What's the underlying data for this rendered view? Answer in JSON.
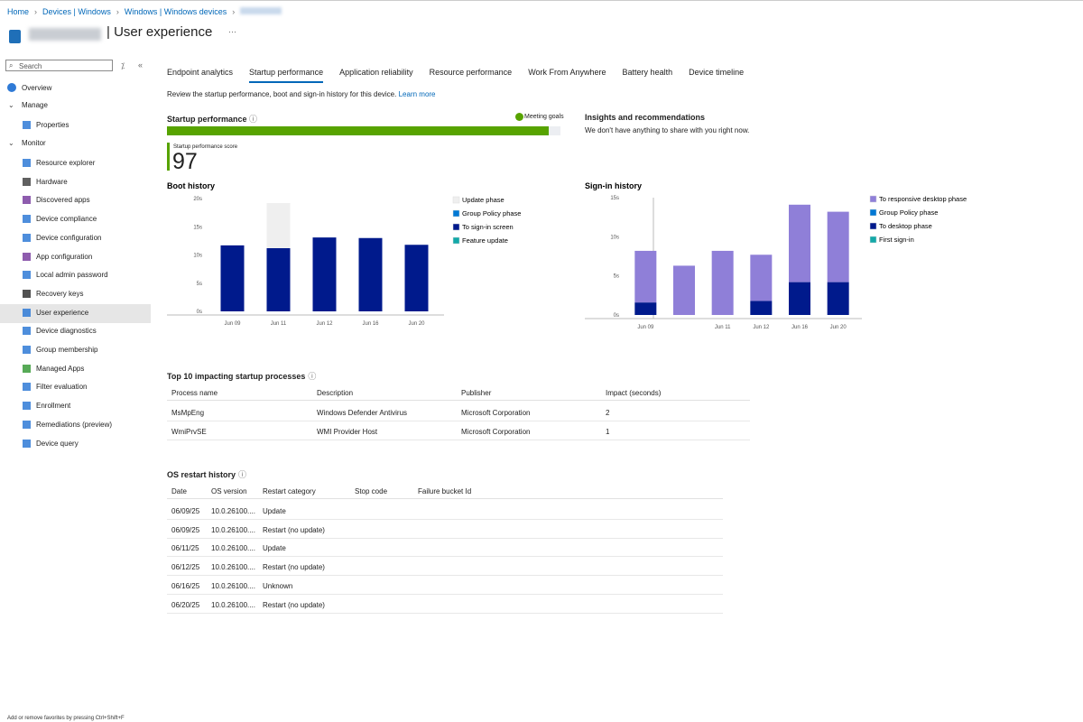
{
  "breadcrumb": [
    "Home",
    "Devices | Windows",
    "Windows | Windows devices"
  ],
  "header": {
    "title": "User experience",
    "more": "···"
  },
  "sidebar": {
    "search": "Search",
    "overview": "Overview",
    "groups": [
      {
        "name": "Manage",
        "items": [
          "Properties"
        ]
      },
      {
        "name": "Monitor",
        "items": [
          "Resource explorer",
          "Hardware",
          "Discovered apps",
          "Device compliance",
          "Device configuration",
          "App configuration",
          "Local admin password",
          "Recovery keys",
          "User experience",
          "Device diagnostics",
          "Group membership",
          "Managed Apps",
          "Filter evaluation",
          "Enrollment",
          "Remediations (preview)",
          "Device query"
        ]
      }
    ]
  },
  "tabs": [
    "Endpoint analytics",
    "Startup performance",
    "Application reliability",
    "Resource performance",
    "Work From Anywhere",
    "Battery health",
    "Device timeline"
  ],
  "intro": {
    "text": "Review the startup performance, boot and sign-in history for this device.",
    "link": "Learn more"
  },
  "startup": {
    "heading": "Startup performance",
    "status": "Meeting goals",
    "score_label": "Startup performance score",
    "score": "97"
  },
  "insights": {
    "heading": "Insights and recommendations",
    "text": "We don't have anything to share with you right now."
  },
  "chart_data": [
    {
      "type": "bar",
      "stacked": true,
      "title": "Boot history",
      "categories": [
        "Jun 09",
        "Jun 11",
        "Jun 12",
        "Jun 16",
        "Jun 20"
      ],
      "series": [
        {
          "name": "Update phase",
          "color": "#efefef",
          "values": [
            0,
            8.0,
            0,
            0,
            0
          ]
        },
        {
          "name": "Group Policy phase",
          "color": "#0078d4",
          "values": [
            0,
            0,
            0,
            0,
            0
          ]
        },
        {
          "name": "To sign-in screen",
          "color": "#001a8c",
          "values": [
            11.7,
            11.2,
            13.1,
            13.0,
            11.8
          ]
        },
        {
          "name": "Feature update",
          "color": "#13a8a8",
          "values": [
            0,
            0,
            0,
            0,
            0
          ]
        }
      ],
      "ylim": [
        0,
        20
      ],
      "yticks": [
        {
          "value": 0,
          "label": "0s"
        },
        {
          "value": 5,
          "label": "5s"
        },
        {
          "value": 10,
          "label": "10s"
        },
        {
          "value": 15,
          "label": "15s"
        },
        {
          "value": 20,
          "label": "20s"
        }
      ]
    },
    {
      "type": "bar",
      "stacked": true,
      "title": "Sign-in history",
      "categories": [
        "Jun 09",
        null,
        "Jun 11",
        "Jun 12",
        "Jun 16",
        "Jun 20"
      ],
      "series": [
        {
          "name": "To responsive desktop phase",
          "color": "#8f7fd8",
          "values": [
            6.6,
            6.3,
            8.2,
            5.9,
            9.9,
            9.0
          ]
        },
        {
          "name": "Group Policy phase",
          "color": "#0078d4",
          "values": [
            0,
            0,
            0,
            0,
            0,
            0
          ]
        },
        {
          "name": "To desktop phase",
          "color": "#001a8c",
          "values": [
            1.6,
            0,
            0,
            1.8,
            4.2,
            4.2
          ]
        },
        {
          "name": "First sign-in",
          "color": "#13a8a8",
          "values": [
            0,
            0,
            0,
            0,
            0,
            0
          ]
        }
      ],
      "ylim": [
        0,
        15
      ],
      "yticks": [
        {
          "value": 0,
          "label": "0s"
        },
        {
          "value": 5,
          "label": "5s"
        },
        {
          "value": 10,
          "label": "10s"
        },
        {
          "value": 15,
          "label": "15s"
        }
      ]
    }
  ],
  "processes": {
    "heading": "Top 10 impacting startup processes",
    "columns": [
      "Process name",
      "Description",
      "Publisher",
      "Impact (seconds)"
    ],
    "rows": [
      [
        "MsMpEng",
        "Windows Defender Antivirus",
        "Microsoft Corporation",
        "2"
      ],
      [
        "WmiPrvSE",
        "WMI Provider Host",
        "Microsoft Corporation",
        "1"
      ]
    ]
  },
  "restarts": {
    "heading": "OS restart history",
    "columns": [
      "Date",
      "OS version",
      "Restart category",
      "Stop code",
      "Failure bucket Id"
    ],
    "rows": [
      [
        "06/09/25",
        "10.0.26100....",
        "Update"
      ],
      [
        "06/09/25",
        "10.0.26100....",
        "Restart (no update)"
      ],
      [
        "06/11/25",
        "10.0.26100....",
        "Update"
      ],
      [
        "06/12/25",
        "10.0.26100....",
        "Restart (no update)"
      ],
      [
        "06/16/25",
        "10.0.26100....",
        "Unknown"
      ],
      [
        "06/20/25",
        "10.0.26100....",
        "Restart (no update)"
      ]
    ]
  },
  "footer": "Add or remove favorites by pressing Ctrl+Shift+F"
}
